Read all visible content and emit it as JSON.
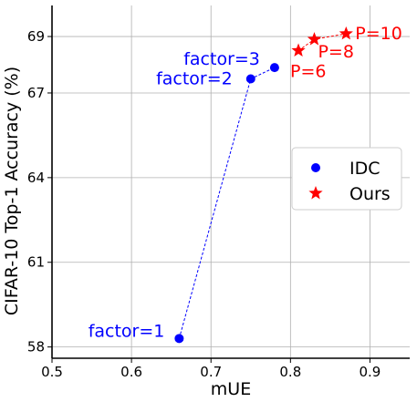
{
  "chart_data": {
    "type": "scatter",
    "xlabel": "mUE",
    "ylabel": "CIFAR-10 Top-1 Accuracy (%)",
    "xlim": [
      0.5,
      0.95
    ],
    "ylim": [
      57.6,
      70.1
    ],
    "xticks": [
      "0.5",
      "0.6",
      "0.7",
      "0.8",
      "0.9"
    ],
    "yticks": [
      "58",
      "61",
      "64",
      "67",
      "69"
    ],
    "grid": true,
    "legend_position": "center-right",
    "series": [
      {
        "name": "IDC",
        "marker": "circle",
        "color": "#0000ff",
        "connected": true,
        "points": [
          {
            "x": 0.66,
            "y": 58.3,
            "label": "factor=1"
          },
          {
            "x": 0.75,
            "y": 67.5,
            "label": "factor=2"
          },
          {
            "x": 0.78,
            "y": 67.9,
            "label": "factor=3"
          }
        ]
      },
      {
        "name": "Ours",
        "marker": "star",
        "color": "#ff0000",
        "connected": true,
        "points": [
          {
            "x": 0.81,
            "y": 68.5,
            "label": "P=6"
          },
          {
            "x": 0.83,
            "y": 68.9,
            "label": "P=8"
          },
          {
            "x": 0.87,
            "y": 69.1,
            "label": "P=10"
          }
        ]
      }
    ]
  }
}
